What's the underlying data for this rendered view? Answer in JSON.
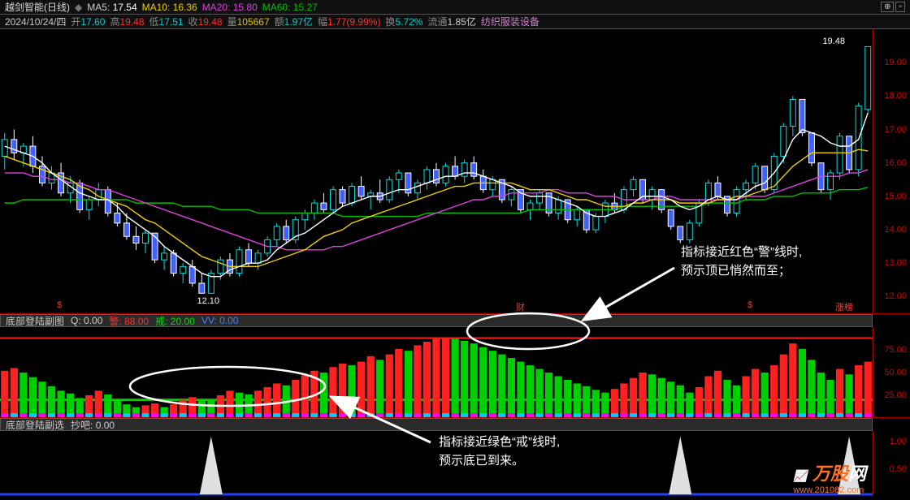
{
  "header": {
    "title": "越剑智能(日线)",
    "ma5_label": "MA5:",
    "ma5_val": "17.54",
    "ma5_color": "#ffffff",
    "ma10_label": "MA10:",
    "ma10_val": "16.36",
    "ma10_color": "#f0d000",
    "ma20_label": "MA20:",
    "ma20_val": "15.80",
    "ma20_color": "#e040e0",
    "ma60_label": "MA60:",
    "ma60_val": "15.27",
    "ma60_color": "#00c000"
  },
  "header2": {
    "date": "2024/10/24/四",
    "open_l": "开",
    "open_v": "17.60",
    "open_c": "#bbb",
    "high_l": "高",
    "high_v": "19.48",
    "high_c": "#ff3030",
    "low_l": "低",
    "low_v": "17.51",
    "low_c": "#bbb",
    "close_l": "收",
    "close_v": "19.48",
    "close_c": "#ff3030",
    "vol_l": "量",
    "vol_v": "105667",
    "vol_c": "#e0c000",
    "amt_l": "额",
    "amt_v": "1.97亿",
    "chg_l": "幅",
    "chg_v": "1.77(9.99%)",
    "chg_c": "#ff3030",
    "turn_l": "换",
    "turn_v": "5.72%",
    "float_l": "流通",
    "float_v": "1.85亿",
    "sector": "纺织服装设备"
  },
  "main_chart": {
    "ylim": [
      11.5,
      20
    ],
    "yticks": [
      12,
      13,
      14,
      15,
      16,
      17,
      18,
      19
    ],
    "peak_label": "19.48",
    "trough_label": "12.10",
    "marker_cai": "财",
    "marker_s": "$",
    "marker_bang": "涨榜",
    "ma5_color": "#ffffff",
    "ma10_color": "#f0d000",
    "ma20_color": "#e040e0",
    "ma60_color": "#00c000",
    "candles": [
      {
        "o": 16.2,
        "h": 16.9,
        "l": 15.8,
        "c": 16.7
      },
      {
        "o": 16.7,
        "h": 17.0,
        "l": 16.1,
        "c": 16.3
      },
      {
        "o": 16.3,
        "h": 16.6,
        "l": 15.9,
        "c": 16.5
      },
      {
        "o": 16.5,
        "h": 16.8,
        "l": 15.7,
        "c": 15.9
      },
      {
        "o": 15.9,
        "h": 16.2,
        "l": 15.3,
        "c": 15.4
      },
      {
        "o": 15.4,
        "h": 15.9,
        "l": 15.2,
        "c": 15.7
      },
      {
        "o": 15.7,
        "h": 16.0,
        "l": 15.0,
        "c": 15.1
      },
      {
        "o": 15.1,
        "h": 15.6,
        "l": 14.8,
        "c": 15.4
      },
      {
        "o": 15.4,
        "h": 15.5,
        "l": 14.5,
        "c": 14.6
      },
      {
        "o": 14.6,
        "h": 15.0,
        "l": 14.3,
        "c": 14.9
      },
      {
        "o": 14.9,
        "h": 15.4,
        "l": 14.7,
        "c": 15.2
      },
      {
        "o": 15.2,
        "h": 15.3,
        "l": 14.4,
        "c": 14.5
      },
      {
        "o": 14.5,
        "h": 14.8,
        "l": 14.1,
        "c": 14.2
      },
      {
        "o": 14.2,
        "h": 14.5,
        "l": 13.7,
        "c": 13.8
      },
      {
        "o": 13.8,
        "h": 14.1,
        "l": 13.4,
        "c": 13.6
      },
      {
        "o": 13.6,
        "h": 14.0,
        "l": 13.3,
        "c": 13.9
      },
      {
        "o": 13.9,
        "h": 13.9,
        "l": 13.0,
        "c": 13.1
      },
      {
        "o": 13.1,
        "h": 13.5,
        "l": 12.8,
        "c": 13.3
      },
      {
        "o": 13.3,
        "h": 13.4,
        "l": 12.6,
        "c": 12.7
      },
      {
        "o": 12.7,
        "h": 13.0,
        "l": 12.4,
        "c": 12.9
      },
      {
        "o": 12.9,
        "h": 13.1,
        "l": 12.3,
        "c": 12.4
      },
      {
        "o": 12.4,
        "h": 12.7,
        "l": 12.1,
        "c": 12.1
      },
      {
        "o": 12.1,
        "h": 12.8,
        "l": 12.1,
        "c": 12.7
      },
      {
        "o": 12.7,
        "h": 13.2,
        "l": 12.5,
        "c": 13.1
      },
      {
        "o": 13.1,
        "h": 13.3,
        "l": 12.6,
        "c": 12.7
      },
      {
        "o": 12.7,
        "h": 13.5,
        "l": 12.6,
        "c": 13.4
      },
      {
        "o": 13.4,
        "h": 13.6,
        "l": 12.9,
        "c": 13.0
      },
      {
        "o": 13.0,
        "h": 13.4,
        "l": 12.8,
        "c": 13.3
      },
      {
        "o": 13.3,
        "h": 13.8,
        "l": 13.2,
        "c": 13.7
      },
      {
        "o": 13.7,
        "h": 14.2,
        "l": 13.5,
        "c": 14.1
      },
      {
        "o": 14.1,
        "h": 14.3,
        "l": 13.6,
        "c": 13.7
      },
      {
        "o": 13.7,
        "h": 14.4,
        "l": 13.6,
        "c": 14.3
      },
      {
        "o": 14.3,
        "h": 14.6,
        "l": 14.0,
        "c": 14.5
      },
      {
        "o": 14.5,
        "h": 14.9,
        "l": 14.3,
        "c": 14.8
      },
      {
        "o": 14.8,
        "h": 15.1,
        "l": 14.5,
        "c": 14.6
      },
      {
        "o": 14.6,
        "h": 15.3,
        "l": 14.5,
        "c": 15.2
      },
      {
        "o": 15.2,
        "h": 15.3,
        "l": 14.7,
        "c": 14.8
      },
      {
        "o": 14.8,
        "h": 15.4,
        "l": 14.7,
        "c": 15.3
      },
      {
        "o": 15.3,
        "h": 15.6,
        "l": 14.9,
        "c": 15.0
      },
      {
        "o": 15.0,
        "h": 15.2,
        "l": 14.6,
        "c": 15.1
      },
      {
        "o": 15.1,
        "h": 15.5,
        "l": 14.8,
        "c": 14.9
      },
      {
        "o": 14.9,
        "h": 15.6,
        "l": 14.8,
        "c": 15.5
      },
      {
        "o": 15.5,
        "h": 15.8,
        "l": 15.1,
        "c": 15.7
      },
      {
        "o": 15.7,
        "h": 15.7,
        "l": 15.0,
        "c": 15.1
      },
      {
        "o": 15.1,
        "h": 15.5,
        "l": 14.9,
        "c": 15.4
      },
      {
        "o": 15.4,
        "h": 15.9,
        "l": 15.2,
        "c": 15.8
      },
      {
        "o": 15.8,
        "h": 16.0,
        "l": 15.3,
        "c": 15.4
      },
      {
        "o": 15.4,
        "h": 16.0,
        "l": 15.3,
        "c": 15.9
      },
      {
        "o": 15.9,
        "h": 16.2,
        "l": 15.5,
        "c": 15.6
      },
      {
        "o": 15.6,
        "h": 16.1,
        "l": 15.4,
        "c": 16.0
      },
      {
        "o": 16.0,
        "h": 16.2,
        "l": 15.5,
        "c": 15.6
      },
      {
        "o": 15.6,
        "h": 15.8,
        "l": 15.1,
        "c": 15.2
      },
      {
        "o": 15.2,
        "h": 15.6,
        "l": 15.0,
        "c": 15.5
      },
      {
        "o": 15.5,
        "h": 15.5,
        "l": 14.8,
        "c": 14.9
      },
      {
        "o": 14.9,
        "h": 15.3,
        "l": 14.7,
        "c": 15.2
      },
      {
        "o": 15.2,
        "h": 15.2,
        "l": 14.5,
        "c": 14.6
      },
      {
        "o": 14.6,
        "h": 14.9,
        "l": 14.3,
        "c": 14.8
      },
      {
        "o": 14.8,
        "h": 15.2,
        "l": 14.6,
        "c": 15.1
      },
      {
        "o": 15.1,
        "h": 15.1,
        "l": 14.4,
        "c": 14.5
      },
      {
        "o": 14.5,
        "h": 15.0,
        "l": 14.3,
        "c": 14.9
      },
      {
        "o": 14.9,
        "h": 14.9,
        "l": 14.2,
        "c": 14.3
      },
      {
        "o": 14.3,
        "h": 14.7,
        "l": 14.1,
        "c": 14.6
      },
      {
        "o": 14.6,
        "h": 14.6,
        "l": 13.9,
        "c": 14.0
      },
      {
        "o": 14.0,
        "h": 14.5,
        "l": 13.9,
        "c": 14.4
      },
      {
        "o": 14.4,
        "h": 14.9,
        "l": 14.2,
        "c": 14.8
      },
      {
        "o": 14.8,
        "h": 15.1,
        "l": 14.5,
        "c": 14.6
      },
      {
        "o": 14.6,
        "h": 15.3,
        "l": 14.5,
        "c": 15.2
      },
      {
        "o": 15.2,
        "h": 15.6,
        "l": 15.0,
        "c": 15.5
      },
      {
        "o": 15.5,
        "h": 15.5,
        "l": 14.8,
        "c": 14.9
      },
      {
        "o": 14.9,
        "h": 15.3,
        "l": 14.6,
        "c": 15.2
      },
      {
        "o": 15.2,
        "h": 15.2,
        "l": 14.5,
        "c": 14.6
      },
      {
        "o": 14.6,
        "h": 14.6,
        "l": 14.0,
        "c": 14.1
      },
      {
        "o": 14.1,
        "h": 14.1,
        "l": 13.6,
        "c": 13.7
      },
      {
        "o": 13.7,
        "h": 14.3,
        "l": 13.6,
        "c": 14.2
      },
      {
        "o": 14.2,
        "h": 14.9,
        "l": 14.1,
        "c": 14.8
      },
      {
        "o": 14.8,
        "h": 15.5,
        "l": 14.7,
        "c": 15.4
      },
      {
        "o": 15.4,
        "h": 15.6,
        "l": 14.9,
        "c": 15.0
      },
      {
        "o": 15.0,
        "h": 15.0,
        "l": 14.4,
        "c": 14.5
      },
      {
        "o": 14.5,
        "h": 15.3,
        "l": 14.4,
        "c": 15.2
      },
      {
        "o": 15.2,
        "h": 15.5,
        "l": 14.9,
        "c": 15.4
      },
      {
        "o": 15.4,
        "h": 16.0,
        "l": 15.2,
        "c": 15.9
      },
      {
        "o": 15.9,
        "h": 15.9,
        "l": 15.1,
        "c": 15.2
      },
      {
        "o": 15.2,
        "h": 16.3,
        "l": 15.1,
        "c": 16.2
      },
      {
        "o": 16.2,
        "h": 17.2,
        "l": 16.0,
        "c": 17.1
      },
      {
        "o": 17.1,
        "h": 18.0,
        "l": 16.8,
        "c": 17.9
      },
      {
        "o": 17.9,
        "h": 17.9,
        "l": 16.8,
        "c": 16.9
      },
      {
        "o": 16.9,
        "h": 16.9,
        "l": 15.9,
        "c": 16.0
      },
      {
        "o": 16.0,
        "h": 16.0,
        "l": 15.1,
        "c": 15.2
      },
      {
        "o": 15.2,
        "h": 15.8,
        "l": 14.9,
        "c": 15.7
      },
      {
        "o": 15.7,
        "h": 16.9,
        "l": 15.5,
        "c": 16.8
      },
      {
        "o": 16.8,
        "h": 16.8,
        "l": 15.7,
        "c": 15.8
      },
      {
        "o": 15.8,
        "h": 17.8,
        "l": 15.6,
        "c": 17.7
      },
      {
        "o": 17.6,
        "h": 19.48,
        "l": 17.51,
        "c": 19.48
      }
    ],
    "ma5": [
      16.5,
      16.4,
      16.3,
      16.2,
      16.0,
      15.7,
      15.5,
      15.3,
      15.1,
      15.0,
      14.9,
      14.9,
      14.7,
      14.4,
      14.2,
      14.0,
      13.8,
      13.5,
      13.3,
      13.1,
      12.9,
      12.7,
      12.6,
      12.6,
      12.8,
      12.9,
      13.0,
      13.0,
      13.1,
      13.4,
      13.6,
      13.8,
      13.9,
      14.1,
      14.3,
      14.5,
      14.7,
      14.8,
      14.9,
      15.0,
      15.0,
      15.1,
      15.2,
      15.2,
      15.3,
      15.4,
      15.5,
      15.6,
      15.6,
      15.7,
      15.7,
      15.6,
      15.5,
      15.4,
      15.3,
      15.1,
      15.0,
      15.0,
      15.0,
      14.9,
      14.8,
      14.7,
      14.5,
      14.4,
      14.4,
      14.5,
      14.6,
      14.8,
      15.0,
      15.0,
      15.0,
      14.9,
      14.7,
      14.6,
      14.7,
      14.9,
      15.0,
      14.9,
      14.9,
      15.1,
      15.3,
      15.4,
      15.7,
      16.1,
      16.7,
      17.0,
      16.9,
      16.8,
      16.6,
      16.5,
      16.5,
      16.7,
      17.5
    ],
    "ma10": [
      16.2,
      16.1,
      16.0,
      15.9,
      15.8,
      15.7,
      15.6,
      15.5,
      15.3,
      15.2,
      15.0,
      14.9,
      14.8,
      14.7,
      14.5,
      14.3,
      14.2,
      14.0,
      13.8,
      13.6,
      13.4,
      13.2,
      13.1,
      13.0,
      12.9,
      12.9,
      12.9,
      12.9,
      13.0,
      13.1,
      13.2,
      13.3,
      13.4,
      13.6,
      13.8,
      13.9,
      14.0,
      14.2,
      14.3,
      14.4,
      14.5,
      14.6,
      14.7,
      14.8,
      14.9,
      15.0,
      15.1,
      15.2,
      15.3,
      15.3,
      15.4,
      15.4,
      15.4,
      15.4,
      15.4,
      15.3,
      15.2,
      15.2,
      15.2,
      15.1,
      15.0,
      14.9,
      14.9,
      14.8,
      14.7,
      14.7,
      14.7,
      14.8,
      14.8,
      14.9,
      14.9,
      14.9,
      14.8,
      14.8,
      14.8,
      14.8,
      14.9,
      14.9,
      15.0,
      15.0,
      15.1,
      15.2,
      15.3,
      15.6,
      15.9,
      16.1,
      16.3,
      16.3,
      16.3,
      16.3,
      16.3,
      16.4,
      16.36
    ],
    "ma20": [
      15.7,
      15.7,
      15.7,
      15.6,
      15.6,
      15.5,
      15.5,
      15.4,
      15.4,
      15.3,
      15.2,
      15.2,
      15.1,
      15.0,
      14.9,
      14.8,
      14.7,
      14.6,
      14.5,
      14.4,
      14.3,
      14.2,
      14.1,
      14.0,
      13.9,
      13.8,
      13.7,
      13.6,
      13.5,
      13.5,
      13.4,
      13.4,
      13.4,
      13.4,
      13.4,
      13.5,
      13.5,
      13.6,
      13.7,
      13.8,
      13.9,
      14.0,
      14.1,
      14.2,
      14.3,
      14.4,
      14.5,
      14.6,
      14.7,
      14.8,
      14.9,
      14.9,
      15.0,
      15.0,
      15.1,
      15.1,
      15.1,
      15.1,
      15.2,
      15.2,
      15.1,
      15.1,
      15.1,
      15.0,
      15.0,
      15.0,
      14.9,
      14.9,
      14.9,
      14.9,
      15.0,
      15.0,
      14.9,
      14.9,
      14.9,
      14.9,
      14.9,
      14.9,
      14.9,
      15.0,
      15.0,
      15.0,
      15.1,
      15.2,
      15.3,
      15.4,
      15.5,
      15.6,
      15.6,
      15.6,
      15.7,
      15.7,
      15.8
    ],
    "ma60": [
      14.8,
      14.8,
      14.9,
      14.9,
      14.9,
      14.9,
      14.9,
      14.9,
      14.9,
      14.9,
      14.9,
      14.9,
      14.9,
      14.9,
      14.8,
      14.8,
      14.8,
      14.8,
      14.8,
      14.7,
      14.7,
      14.7,
      14.7,
      14.6,
      14.6,
      14.6,
      14.6,
      14.5,
      14.5,
      14.5,
      14.5,
      14.5,
      14.5,
      14.5,
      14.5,
      14.5,
      14.4,
      14.4,
      14.4,
      14.4,
      14.4,
      14.4,
      14.4,
      14.4,
      14.4,
      14.5,
      14.5,
      14.5,
      14.5,
      14.5,
      14.5,
      14.5,
      14.5,
      14.5,
      14.5,
      14.5,
      14.6,
      14.6,
      14.6,
      14.6,
      14.6,
      14.6,
      14.6,
      14.6,
      14.6,
      14.6,
      14.7,
      14.7,
      14.7,
      14.7,
      14.7,
      14.7,
      14.7,
      14.7,
      14.7,
      14.8,
      14.8,
      14.8,
      14.8,
      14.9,
      14.9,
      14.9,
      15.0,
      15.0,
      15.0,
      15.1,
      15.1,
      15.1,
      15.1,
      15.2,
      15.2,
      15.2,
      15.27
    ]
  },
  "sub1": {
    "header": {
      "title": "底部登陆副图",
      "q_l": "Q:",
      "q_v": "0.00",
      "q_c": "#ccc",
      "jing_l": "警:",
      "jing_v": "88.00",
      "jing_c": "#ff3030",
      "jie_l": "戒:",
      "jie_v": "20.00",
      "jie_c": "#00e000",
      "vv_l": "VV:",
      "vv_v": "0.00",
      "vv_c": "#4080ff"
    },
    "ylim": [
      0,
      100
    ],
    "yticks": [
      25,
      50,
      75
    ],
    "warn_line": 88,
    "guard_line": 20,
    "warn_color": "#ff2020",
    "guard_color": "#00d000",
    "bars": [
      52,
      55,
      50,
      45,
      40,
      35,
      30,
      27,
      22,
      25,
      30,
      26,
      21,
      15,
      12,
      14,
      16,
      12,
      15,
      20,
      23,
      21,
      20,
      25,
      30,
      28,
      26,
      30,
      34,
      38,
      36,
      42,
      47,
      52,
      50,
      56,
      60,
      58,
      62,
      68,
      64,
      70,
      76,
      74,
      80,
      84,
      87,
      88,
      87,
      85,
      82,
      78,
      74,
      70,
      66,
      62,
      58,
      54,
      50,
      46,
      42,
      38,
      35,
      31,
      28,
      32,
      38,
      44,
      50,
      48,
      44,
      40,
      36,
      28,
      34,
      46,
      52,
      42,
      36,
      46,
      54,
      50,
      58,
      70,
      82,
      76,
      64,
      50,
      42,
      54,
      48,
      58,
      62
    ],
    "dot_colors": [
      "#ff00ff",
      "#00c8ff"
    ]
  },
  "sub2": {
    "header": {
      "title": "底部登陆副选",
      "cb_l": "抄吧:",
      "cb_v": "0.00"
    },
    "ylim": [
      0,
      1.2
    ],
    "yticks": [
      0.5,
      1.0
    ],
    "spikes": [
      22,
      72,
      90
    ],
    "spike_color": "#e0e0e0"
  },
  "annotations": {
    "a1_l1": "指标接近红色“警”线时,",
    "a1_l2": "预示顶已悄然而至；",
    "a2_l1": "指标接近绿色“戒”线时,",
    "a2_l2": "预示底已到来。"
  },
  "logo": {
    "text1": "万股",
    "text2": "网",
    "url": "www.201082.com",
    "c1": "#ff7020",
    "c2": "#ffffff"
  }
}
